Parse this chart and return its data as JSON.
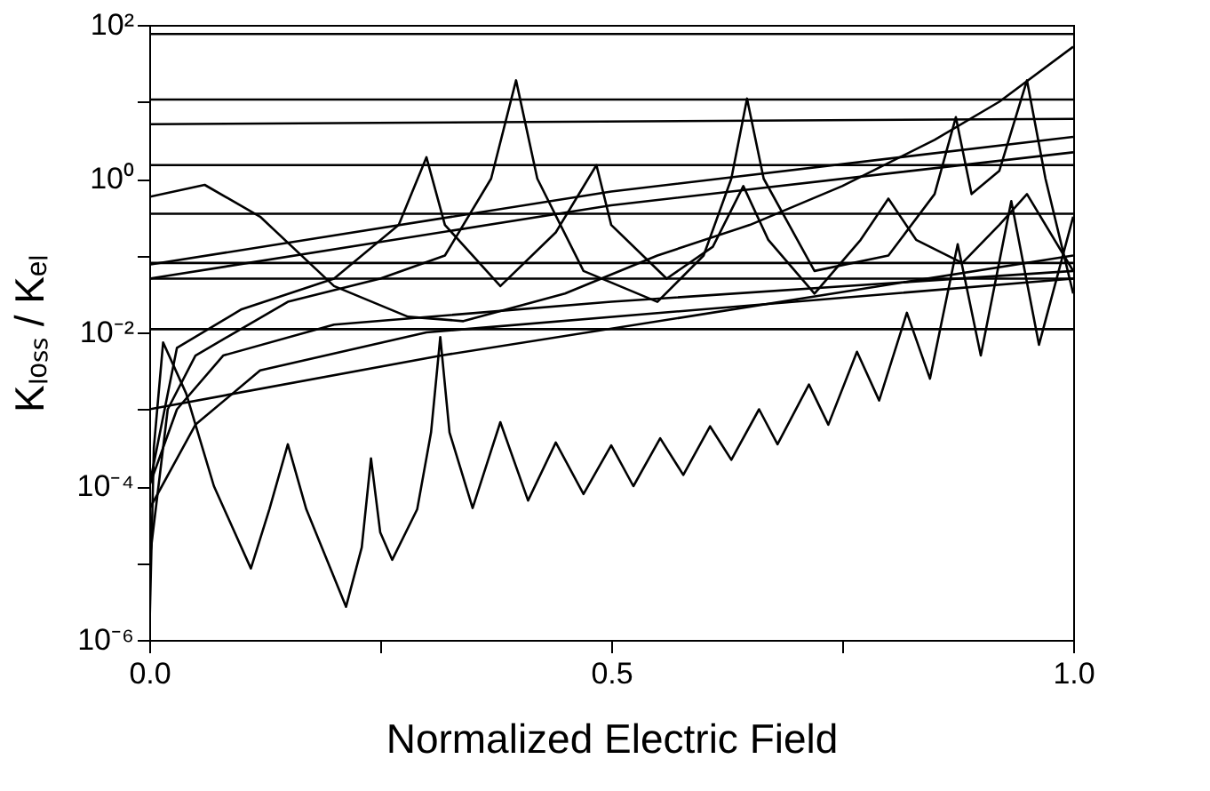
{
  "chart_data": {
    "type": "line",
    "xlabel": "Normalized Electric Field",
    "ylabel": "Kₗₒₛₛ / Kₑₗ",
    "log": "y",
    "grid": false,
    "marker": "none",
    "line_style": "solid",
    "xlim": [
      0,
      1
    ],
    "ylim": [
      1e-06,
      100
    ],
    "xticks": [
      {
        "value": 0,
        "label": "0.0"
      },
      {
        "value": 0.25,
        "label": null
      },
      {
        "value": 0.5,
        "label": "0.5"
      },
      {
        "value": 0.75,
        "label": null
      },
      {
        "value": 1,
        "label": "1.0"
      }
    ],
    "yticks": [
      {
        "value": 1e-06,
        "label": "10⁻⁶"
      },
      {
        "value": 1e-05,
        "label": null
      },
      {
        "value": 0.0001,
        "label": "10⁻⁴"
      },
      {
        "value": 0.001,
        "label": null
      },
      {
        "value": 0.01,
        "label": "10⁻²"
      },
      {
        "value": 0.1,
        "label": null
      },
      {
        "value": 1,
        "label": "10⁰"
      },
      {
        "value": 10,
        "label": null
      },
      {
        "value": 100,
        "label": "10²"
      }
    ],
    "series": [
      {
        "color": "#000000",
        "x": [
          0,
          0.005,
          0.015,
          0.04,
          0.07,
          0.11,
          0.13,
          0.15,
          0.17,
          0.213,
          0.23,
          0.24,
          0.25,
          0.263,
          0.29,
          0.305,
          0.315,
          0.325,
          0.35,
          0.38,
          0.41,
          0.44,
          0.47,
          0.5,
          0.524,
          0.553,
          0.578,
          0.607,
          0.63,
          0.66,
          0.68,
          0.714,
          0.735,
          0.766,
          0.79,
          0.82,
          0.845,
          0.875,
          0.9,
          0.933,
          0.963,
          1.0
        ],
        "values": [
          1e-06,
          0.00032,
          0.0074,
          0.0016,
          0.0001,
          8.5e-06,
          5e-05,
          0.00035,
          5e-05,
          2.7e-06,
          1.6e-05,
          0.00023,
          2.5e-05,
          1.1e-05,
          5e-05,
          0.0005,
          0.0087,
          0.0005,
          5.2e-05,
          0.00068,
          6.5e-05,
          0.00037,
          7.9e-05,
          0.00034,
          0.0001,
          0.00042,
          0.00014,
          0.0006,
          0.00022,
          0.001,
          0.00035,
          0.0021,
          0.00063,
          0.0056,
          0.0013,
          0.018,
          0.0025,
          0.14,
          0.005,
          0.51,
          0.0069,
          0.32
        ]
      },
      {
        "color": "#000000",
        "x": [
          0,
          0.02,
          0.05,
          0.15,
          0.25,
          0.32,
          0.37,
          0.397,
          0.42,
          0.47,
          0.55,
          0.6,
          0.63,
          0.647,
          0.665,
          0.72,
          0.8,
          0.85,
          0.873,
          0.89,
          0.92,
          0.95,
          0.97,
          1.0
        ],
        "values": [
          1e-05,
          0.001,
          0.005,
          0.025,
          0.05,
          0.1,
          1,
          19,
          1,
          0.063,
          0.025,
          0.1,
          1,
          11,
          1,
          0.063,
          0.1,
          0.63,
          6.3,
          0.63,
          1.26,
          19,
          1,
          0.032
        ]
      },
      {
        "color": "#000000",
        "x": [
          0,
          0.03,
          0.1,
          0.2,
          0.27,
          0.3,
          0.32,
          0.38,
          0.44,
          0.484,
          0.5,
          0.56,
          0.61,
          0.643,
          0.67,
          0.72,
          0.77,
          0.8,
          0.83,
          0.88,
          0.92,
          0.95,
          1.0
        ],
        "values": [
          0.0001,
          0.0063,
          0.02,
          0.05,
          0.25,
          1.9,
          0.25,
          0.04,
          0.2,
          1.5,
          0.25,
          0.05,
          0.13,
          0.8,
          0.16,
          0.032,
          0.16,
          0.55,
          0.16,
          0.08,
          0.25,
          0.63,
          0.063
        ]
      },
      {
        "color": "#000000",
        "x": [
          0,
          0.06,
          0.12,
          0.2,
          0.28,
          0.34,
          0.45,
          0.55,
          0.65,
          0.75,
          0.85,
          0.92,
          1.0
        ],
        "values": [
          0.58,
          0.83,
          0.32,
          0.04,
          0.016,
          0.014,
          0.032,
          0.1,
          0.25,
          0.8,
          3.2,
          10,
          52
        ]
      },
      {
        "color": "#000000",
        "x": [
          0,
          0.5,
          1
        ],
        "values": [
          0.076,
          0.68,
          3.5
        ]
      },
      {
        "color": "#000000",
        "x": [
          0,
          0.5,
          1
        ],
        "values": [
          0.05,
          0.45,
          2.2
        ]
      },
      {
        "color": "#000000",
        "x": [
          0,
          0.316,
          1
        ],
        "values": [
          0.001,
          0.005,
          0.1
        ]
      },
      {
        "color": "#000000",
        "x": [
          0,
          0.03,
          0.08,
          0.2,
          0.5,
          1
        ],
        "values": [
          0.0001,
          0.001,
          0.005,
          0.0126,
          0.025,
          0.063
        ]
      },
      {
        "color": "#000000",
        "x": [
          0,
          0.05,
          0.12,
          0.3,
          0.6,
          1
        ],
        "values": [
          5e-05,
          0.00063,
          0.0032,
          0.01,
          0.02,
          0.05
        ]
      },
      {
        "color": "#000000",
        "x": [
          0,
          1
        ],
        "values": [
          76,
          76
        ]
      },
      {
        "color": "#000000",
        "x": [
          0,
          1
        ],
        "values": [
          10.7,
          10.7
        ]
      },
      {
        "color": "#000000",
        "x": [
          0,
          1
        ],
        "values": [
          5.1,
          6
        ]
      },
      {
        "color": "#000000",
        "x": [
          0,
          1
        ],
        "values": [
          1.5,
          1.5
        ]
      },
      {
        "color": "#000000",
        "x": [
          0,
          1
        ],
        "values": [
          0.35,
          0.35
        ]
      },
      {
        "color": "#000000",
        "x": [
          0,
          1
        ],
        "values": [
          0.08,
          0.08
        ]
      },
      {
        "color": "#000000",
        "x": [
          0,
          1
        ],
        "values": [
          0.05,
          0.05
        ]
      },
      {
        "color": "#000000",
        "x": [
          0,
          1
        ],
        "values": [
          0.011,
          0.011
        ]
      }
    ]
  }
}
